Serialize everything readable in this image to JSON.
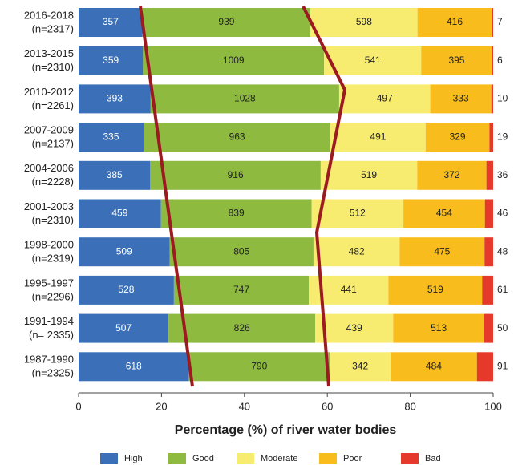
{
  "chart_data": {
    "type": "stacked_percent_bar",
    "xlabel": "Percentage (%) of river water bodies",
    "categories": [
      "2016-2018",
      "2013-2015",
      "2010-2012",
      "2007-2009",
      "2004-2006",
      "2001-2003",
      "1998-2000",
      "1995-1997",
      "1991-1994",
      "1987-1990"
    ],
    "category_notes": [
      "(n=2317)",
      "(n=2310)",
      "(n=2261)",
      "(n=2137)",
      "(n=2228)",
      "(n=2310)",
      "(n=2319)",
      "(n=2296)",
      "(n= 2335)",
      "(n=2325)"
    ],
    "series": [
      {
        "name": "High",
        "color": "#3b70b8",
        "values": [
          357,
          359,
          393,
          335,
          385,
          459,
          509,
          528,
          507,
          618
        ]
      },
      {
        "name": "Good",
        "color": "#8dba3f",
        "values": [
          939,
          1009,
          1028,
          963,
          916,
          839,
          805,
          747,
          826,
          790
        ]
      },
      {
        "name": "Moderate",
        "color": "#f8ec70",
        "values": [
          598,
          541,
          497,
          491,
          519,
          512,
          482,
          441,
          439,
          342
        ]
      },
      {
        "name": "Poor",
        "color": "#f8bd1c",
        "values": [
          416,
          395,
          333,
          329,
          372,
          454,
          475,
          519,
          513,
          484
        ]
      },
      {
        "name": "Bad",
        "color": "#e5392c",
        "values": [
          7,
          6,
          10,
          19,
          36,
          46,
          48,
          61,
          50,
          91
        ]
      }
    ],
    "xlim": [
      0,
      100
    ],
    "xticks": [
      0,
      20,
      40,
      60,
      80,
      100
    ],
    "legend": "bottom"
  }
}
